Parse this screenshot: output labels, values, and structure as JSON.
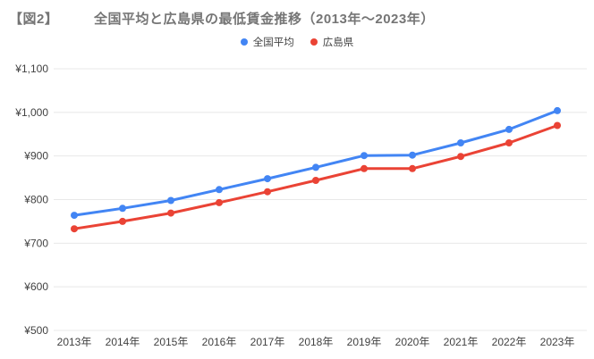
{
  "header": {
    "figure_label": "【図2】",
    "title": "全国平均と広島県の最低賃金推移（2013年～2023年）"
  },
  "chart_data": {
    "type": "line",
    "title": "全国平均と広島県の最低賃金推移（2013年～2023年）",
    "categories": [
      "2013年",
      "2014年",
      "2015年",
      "2016年",
      "2017年",
      "2018年",
      "2019年",
      "2020年",
      "2021年",
      "2022年",
      "2023年"
    ],
    "series": [
      {
        "name": "全国平均",
        "color": "#4285F4",
        "values": [
          764,
          780,
          798,
          823,
          848,
          874,
          901,
          902,
          930,
          961,
          1004
        ]
      },
      {
        "name": "広島県",
        "color": "#EA4335",
        "values": [
          733,
          750,
          769,
          793,
          818,
          844,
          871,
          871,
          899,
          930,
          970
        ]
      }
    ],
    "ylim": [
      500,
      1100
    ],
    "y_ticks": [
      {
        "value": 500,
        "label": "¥500"
      },
      {
        "value": 600,
        "label": "¥600"
      },
      {
        "value": 700,
        "label": "¥700"
      },
      {
        "value": 800,
        "label": "¥800"
      },
      {
        "value": 900,
        "label": "¥900"
      },
      {
        "value": 1000,
        "label": "¥1,000"
      },
      {
        "value": 1100,
        "label": "¥1,100"
      }
    ],
    "grid": true,
    "legend_position": "top",
    "xlabel": "",
    "ylabel": "",
    "colors": {
      "gridline": "#e8e8e8",
      "axis_label": "#424242",
      "title": "#757575",
      "background": "#ffffff"
    }
  }
}
